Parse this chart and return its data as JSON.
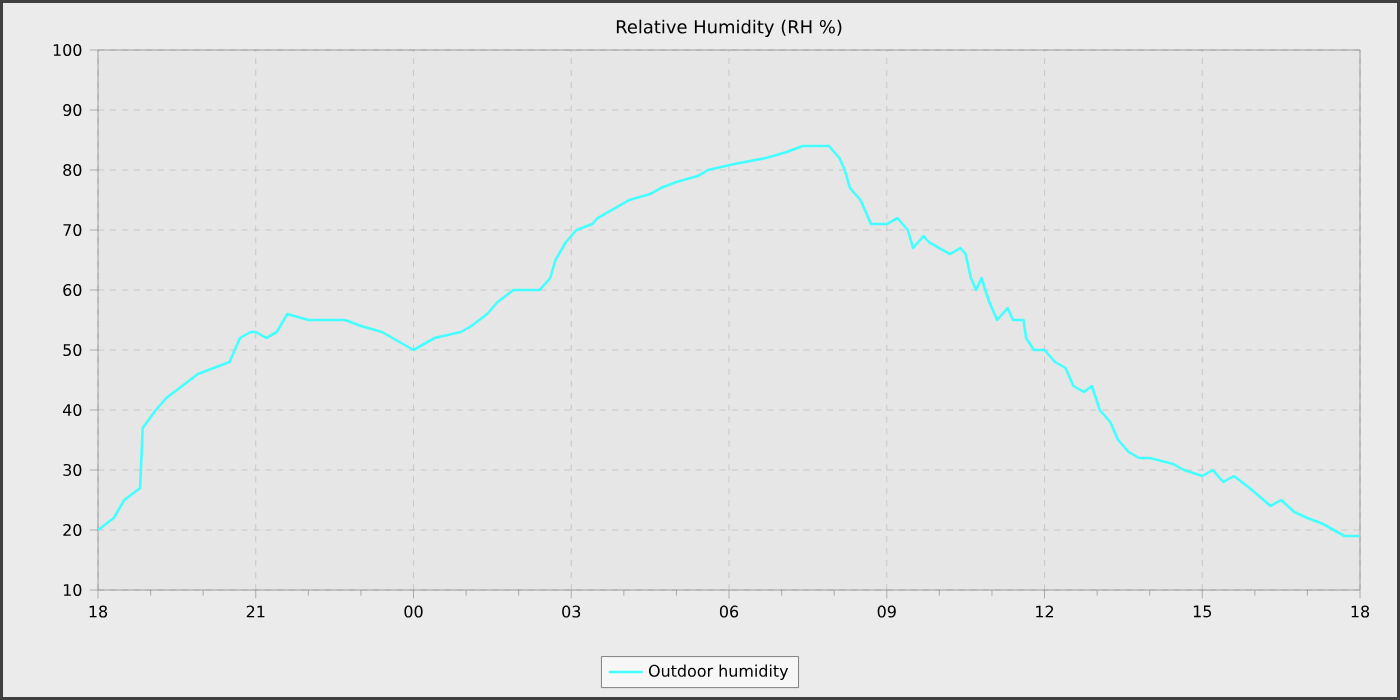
{
  "chart_data": {
    "type": "line",
    "title": "Relative Humidity (RH %)",
    "x": [
      18.0,
      18.3,
      18.5,
      18.8,
      18.85,
      19.1,
      19.3,
      19.6,
      19.9,
      20.2,
      20.5,
      20.7,
      20.9,
      21.0,
      21.2,
      21.4,
      21.6,
      22.0,
      22.7,
      23.0,
      23.4,
      23.6,
      23.8,
      24.0,
      24.4,
      24.9,
      25.1,
      25.4,
      25.6,
      25.9,
      26.4,
      26.6,
      26.7,
      26.9,
      27.1,
      27.4,
      27.5,
      27.7,
      27.9,
      28.1,
      28.5,
      28.7,
      29.0,
      29.4,
      29.6,
      30.1,
      30.7,
      31.1,
      31.4,
      31.9,
      32.0,
      32.1,
      32.2,
      32.3,
      32.5,
      32.6,
      32.7,
      32.9,
      33.0,
      33.2,
      33.3,
      33.4,
      33.5,
      33.6,
      33.7,
      33.8,
      34.0,
      34.2,
      34.4,
      34.5,
      34.6,
      34.7,
      34.8,
      34.95,
      35.1,
      35.3,
      35.4,
      35.6,
      35.65,
      35.8,
      36.0,
      36.2,
      36.4,
      36.55,
      36.75,
      36.9,
      37.05,
      37.25,
      37.4,
      37.6,
      37.8,
      38.0,
      38.45,
      38.65,
      39.0,
      39.2,
      39.4,
      39.6,
      39.9,
      40.3,
      40.5,
      40.75,
      41.0,
      41.3,
      41.7,
      42.0
    ],
    "series": [
      {
        "name": "Outdoor humidity",
        "color": "#44ffff",
        "values": [
          20,
          22,
          25,
          27,
          37,
          40,
          42,
          44,
          46,
          47,
          48,
          52,
          53,
          53,
          52,
          53,
          56,
          55,
          55,
          54,
          53,
          52,
          51,
          50,
          52,
          53,
          54,
          56,
          58,
          60,
          60,
          62,
          65,
          68,
          70,
          71,
          72,
          73,
          74,
          75,
          76,
          77,
          78,
          79,
          80,
          81,
          82,
          83,
          84,
          84,
          83,
          82,
          80,
          77,
          75,
          73,
          71,
          71,
          71,
          72,
          71,
          70,
          67,
          68,
          69,
          68,
          67,
          66,
          67,
          66,
          62,
          60,
          62,
          58,
          55,
          57,
          55,
          55,
          52,
          50,
          50,
          48,
          47,
          44,
          43,
          44,
          40,
          38,
          35,
          33,
          32,
          32,
          31,
          30,
          29,
          30,
          28,
          29,
          27,
          24,
          25,
          23,
          22,
          21,
          19,
          19
        ]
      }
    ],
    "xlim": [
      18,
      42
    ],
    "xticks": [
      {
        "value": 18,
        "label": "18"
      },
      {
        "value": 21,
        "label": "21"
      },
      {
        "value": 24,
        "label": "00"
      },
      {
        "value": 27,
        "label": "03"
      },
      {
        "value": 30,
        "label": "06"
      },
      {
        "value": 33,
        "label": "09"
      },
      {
        "value": 36,
        "label": "12"
      },
      {
        "value": 39,
        "label": "15"
      },
      {
        "value": 42,
        "label": "18"
      }
    ],
    "ylim": [
      10,
      100
    ],
    "yticks": [
      10,
      20,
      30,
      40,
      50,
      60,
      70,
      80,
      90,
      100
    ],
    "grid": true,
    "legend": "bottom",
    "marker": "none",
    "line_style": "solid"
  }
}
